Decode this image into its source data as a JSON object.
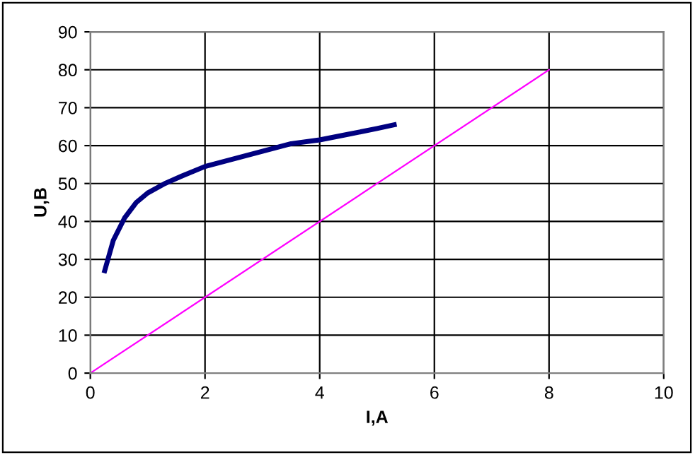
{
  "chart_data": {
    "type": "line",
    "xlabel": "I,A",
    "ylabel": "U,B",
    "xlim": [
      0,
      10
    ],
    "xticks": [
      0,
      2,
      4,
      6,
      8,
      10
    ],
    "ylim": [
      0,
      90
    ],
    "yticks": [
      0,
      10,
      20,
      30,
      40,
      50,
      60,
      70,
      80,
      90
    ],
    "grid": true,
    "legend": false,
    "marker": "none",
    "line_style": "solid",
    "series": [
      {
        "color": "#000080",
        "x": [
          0.25,
          0.4,
          0.6,
          0.8,
          1.0,
          1.3,
          1.6,
          2,
          2.5,
          3,
          3.5,
          4,
          4.5,
          5,
          5.3
        ],
        "values": [
          27,
          35,
          41,
          45,
          47.5,
          50,
          52,
          54.5,
          56.5,
          58.5,
          60.5,
          61.5,
          63,
          64.5,
          65.5
        ]
      },
      {
        "color": "#ff00ff",
        "x": [
          0,
          8
        ],
        "values": [
          0,
          80
        ]
      }
    ]
  }
}
